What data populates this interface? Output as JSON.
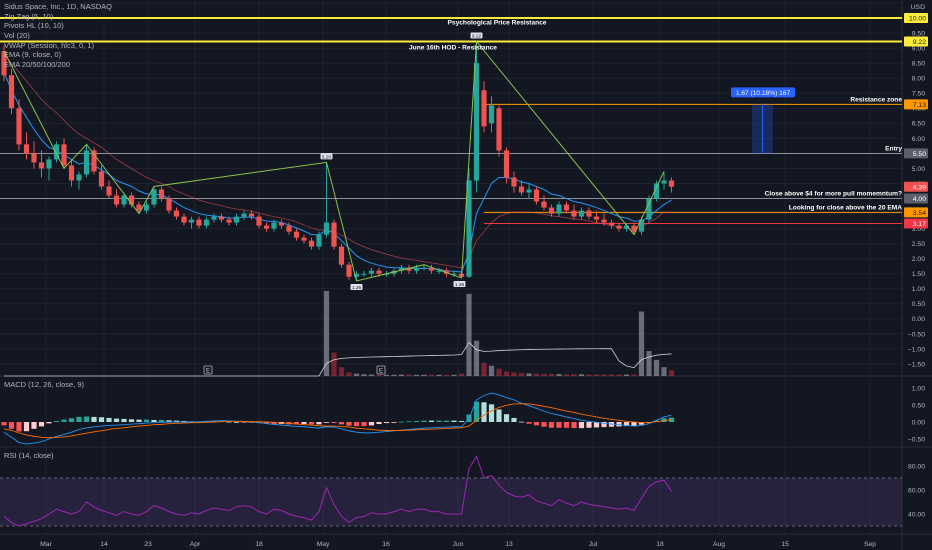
{
  "legend": {
    "symbol": "Sidus Space, Inc., 1D, NASDAQ",
    "indicators": [
      "Zig Zag (5, 10)",
      "Pivots HL (10, 10)",
      "Vol (20)",
      "VWAP (Session, hlc3, 0, 1)",
      "EMA (9, close, 0)",
      "EMA 20/50/100/200"
    ]
  },
  "currency": "USD",
  "colors": {
    "up": "#26a69a",
    "down": "#ef5350",
    "background": "#131722",
    "yellow_line": "#ffeb3b",
    "orange_line": "#ff9800",
    "red_line": "#f23645",
    "blue_label": "#2962ff",
    "ema9": "#2196f3",
    "ema20": "#f7525f",
    "zigzag": "#8bc34a",
    "rsi": "#9c27b0",
    "macd": "#2196f3",
    "signal": "#ff6d00"
  },
  "price_axis": {
    "min": -1.9,
    "max": 10.6,
    "ticks": [
      "10.50",
      "10.00",
      "9.50",
      "9.00",
      "8.50",
      "8.00",
      "7.50",
      "7.00",
      "6.50",
      "6.00",
      "5.50",
      "5.00",
      "4.50",
      "4.00",
      "3.50",
      "3.00",
      "2.50",
      "2.00",
      "1.50",
      "1.00",
      "0.50",
      "0.00",
      "−0.50",
      "−1.00",
      "−1.50"
    ]
  },
  "macd_axis": {
    "ticks": [
      "1.00",
      "0.50",
      "0.00",
      "−0.50"
    ]
  },
  "rsi_axis": {
    "ticks": [
      "80.00",
      "60.00",
      "40.00"
    ]
  },
  "x_axis_labels": [
    "Mar",
    "14",
    "23",
    "Apr",
    "18",
    "May",
    "16",
    "Jun",
    "13",
    "Jul",
    "18",
    "Aug",
    "15",
    "Sep"
  ],
  "price_labels": {
    "p1000": "10.00",
    "p922": "9.22",
    "p713": "7.13",
    "p550": "5.50",
    "p439": "4.39",
    "p400": "4.00",
    "p354": "3.54",
    "p317": "3.17"
  },
  "annotations": {
    "psych": "Psychological Price Resistance",
    "june16": "June 16th HOD - Resistance",
    "resistance_zone": "Resistance zone",
    "entry": "Entry",
    "close_above_4": "Close above $4 for more pull momemntum?",
    "close_above_20ema": "Looking for close above the 20 EMA",
    "measure": "1.67 (10.18%) 167",
    "earnings": "E"
  },
  "pivot_labels": {
    "high1": "5.20",
    "low1": "1.26",
    "high2": "9.22",
    "low2": "1.36"
  },
  "macd_legend": "MACD (12, 26, close, 9)",
  "rsi_legend": "RSI (14, close)",
  "chart_data": {
    "type": "candlestick",
    "symbol": "Sidus Space, Inc.",
    "interval": "1D",
    "exchange": "NASDAQ",
    "ohlc": [
      [
        8.9,
        9.1,
        7.9,
        8.1
      ],
      [
        8.1,
        8.3,
        6.8,
        7.0
      ],
      [
        7.0,
        7.3,
        5.6,
        5.8
      ],
      [
        5.8,
        6.2,
        5.3,
        5.5
      ],
      [
        5.5,
        5.9,
        5.0,
        5.2
      ],
      [
        5.2,
        5.6,
        4.7,
        5.0
      ],
      [
        5.0,
        5.4,
        4.6,
        5.3
      ],
      [
        5.3,
        5.9,
        5.2,
        5.8
      ],
      [
        5.8,
        6.0,
        5.0,
        5.1
      ],
      [
        5.1,
        5.3,
        4.4,
        4.6
      ],
      [
        4.6,
        4.9,
        4.3,
        4.8
      ],
      [
        4.8,
        5.8,
        4.7,
        5.6
      ],
      [
        5.6,
        5.7,
        4.8,
        4.9
      ],
      [
        4.9,
        5.1,
        4.3,
        4.4
      ],
      [
        4.4,
        4.6,
        4.0,
        4.1
      ],
      [
        4.1,
        4.3,
        3.7,
        3.8
      ],
      [
        3.8,
        4.2,
        3.7,
        4.1
      ],
      [
        4.1,
        4.2,
        3.7,
        3.8
      ],
      [
        3.8,
        3.9,
        3.5,
        3.6
      ],
      [
        3.6,
        3.9,
        3.5,
        3.8
      ],
      [
        3.8,
        4.4,
        3.7,
        4.3
      ],
      [
        4.3,
        4.4,
        3.9,
        4.0
      ],
      [
        4.0,
        4.1,
        3.5,
        3.6
      ],
      [
        3.6,
        3.7,
        3.3,
        3.4
      ],
      [
        3.4,
        3.5,
        3.1,
        3.2
      ],
      [
        3.2,
        3.4,
        3.0,
        3.3
      ],
      [
        3.3,
        3.4,
        3.0,
        3.1
      ],
      [
        3.1,
        3.4,
        3.0,
        3.3
      ],
      [
        3.3,
        3.5,
        3.2,
        3.4
      ],
      [
        3.4,
        3.5,
        3.2,
        3.3
      ],
      [
        3.3,
        3.4,
        3.1,
        3.2
      ],
      [
        3.2,
        3.5,
        3.1,
        3.4
      ],
      [
        3.4,
        3.6,
        3.3,
        3.5
      ],
      [
        3.5,
        3.6,
        3.3,
        3.4
      ],
      [
        3.4,
        3.5,
        3.0,
        3.1
      ],
      [
        3.1,
        3.2,
        2.9,
        3.0
      ],
      [
        3.0,
        3.3,
        2.9,
        3.2
      ],
      [
        3.2,
        3.3,
        3.0,
        3.1
      ],
      [
        3.1,
        3.2,
        2.8,
        2.9
      ],
      [
        2.9,
        3.0,
        2.6,
        2.7
      ],
      [
        2.7,
        2.8,
        2.5,
        2.6
      ],
      [
        2.6,
        2.7,
        2.3,
        2.4
      ],
      [
        2.4,
        2.9,
        2.3,
        2.8
      ],
      [
        2.8,
        5.2,
        2.7,
        3.2
      ],
      [
        3.2,
        3.3,
        2.3,
        2.4
      ],
      [
        2.4,
        2.5,
        1.7,
        1.8
      ],
      [
        1.8,
        1.9,
        1.3,
        1.4
      ],
      [
        1.4,
        1.6,
        1.3,
        1.5
      ],
      [
        1.5,
        1.6,
        1.4,
        1.5
      ],
      [
        1.5,
        1.7,
        1.4,
        1.6
      ],
      [
        1.6,
        1.7,
        1.4,
        1.5
      ],
      [
        1.5,
        1.6,
        1.4,
        1.5
      ],
      [
        1.5,
        1.7,
        1.4,
        1.6
      ],
      [
        1.6,
        1.8,
        1.5,
        1.7
      ],
      [
        1.7,
        1.8,
        1.5,
        1.6
      ],
      [
        1.6,
        1.8,
        1.5,
        1.7
      ],
      [
        1.7,
        1.8,
        1.6,
        1.7
      ],
      [
        1.7,
        1.8,
        1.5,
        1.6
      ],
      [
        1.6,
        1.7,
        1.5,
        1.6
      ],
      [
        1.6,
        1.7,
        1.4,
        1.5
      ],
      [
        1.5,
        1.6,
        1.4,
        1.5
      ],
      [
        1.5,
        1.6,
        1.36,
        1.4
      ],
      [
        1.4,
        5.0,
        1.36,
        4.6
      ],
      [
        4.6,
        9.22,
        4.2,
        8.5
      ],
      [
        7.6,
        7.9,
        6.2,
        6.4
      ],
      [
        6.5,
        7.4,
        6.2,
        7.1
      ],
      [
        7.0,
        7.1,
        5.4,
        5.6
      ],
      [
        5.6,
        5.7,
        4.5,
        4.7
      ],
      [
        4.7,
        4.9,
        4.2,
        4.4
      ],
      [
        4.4,
        4.6,
        4.1,
        4.2
      ],
      [
        4.2,
        4.5,
        4.0,
        4.3
      ],
      [
        4.3,
        4.4,
        3.8,
        3.9
      ],
      [
        3.9,
        4.1,
        3.6,
        3.7
      ],
      [
        3.7,
        3.8,
        3.4,
        3.5
      ],
      [
        3.5,
        3.9,
        3.4,
        3.8
      ],
      [
        3.8,
        3.9,
        3.5,
        3.6
      ],
      [
        3.6,
        3.8,
        3.3,
        3.4
      ],
      [
        3.4,
        3.7,
        3.3,
        3.6
      ],
      [
        3.6,
        3.7,
        3.3,
        3.4
      ],
      [
        3.4,
        3.6,
        3.2,
        3.3
      ],
      [
        3.3,
        3.5,
        3.1,
        3.2
      ],
      [
        3.2,
        3.3,
        3.0,
        3.1
      ],
      [
        3.1,
        3.2,
        2.9,
        3.0
      ],
      [
        3.0,
        3.2,
        2.9,
        3.1
      ],
      [
        3.1,
        3.2,
        2.8,
        2.9
      ],
      [
        2.9,
        3.4,
        2.8,
        3.3
      ],
      [
        3.3,
        4.1,
        3.2,
        4.0
      ],
      [
        4.0,
        4.6,
        3.9,
        4.5
      ],
      [
        4.5,
        4.9,
        4.3,
        4.6
      ],
      [
        4.6,
        4.7,
        4.2,
        4.39
      ]
    ],
    "volume": [
      0,
      0,
      0,
      0,
      0,
      0,
      0,
      0,
      0,
      0,
      0,
      0,
      0,
      0,
      0,
      0,
      0,
      0,
      0,
      0,
      0,
      0,
      0,
      0,
      0,
      0,
      0,
      0,
      0,
      0,
      0,
      0,
      0,
      0,
      0,
      0,
      0,
      0,
      0,
      0,
      0,
      0,
      0,
      290,
      80,
      30,
      12,
      8,
      6,
      5,
      4,
      4,
      4,
      5,
      5,
      4,
      4,
      4,
      4,
      4,
      4,
      8,
      280,
      120,
      45,
      35,
      25,
      15,
      12,
      10,
      9,
      8,
      7,
      7,
      7,
      6,
      6,
      6,
      5,
      5,
      5,
      5,
      5,
      5,
      5,
      220,
      85,
      55,
      30,
      20
    ],
    "vwap_ema": [
      8.2,
      7.6,
      7.1,
      6.7,
      6.3,
      5.95,
      5.7,
      5.6,
      5.45,
      5.3,
      5.15,
      5.2,
      5.1,
      4.95,
      4.8,
      4.6,
      4.5,
      4.4,
      4.25,
      4.15,
      4.15,
      4.12,
      4.0,
      3.85,
      3.7,
      3.6,
      3.5,
      3.45,
      3.42,
      3.4,
      3.35,
      3.35,
      3.38,
      3.38,
      3.32,
      3.25,
      3.24,
      3.2,
      3.12,
      3.02,
      2.92,
      2.8,
      2.8,
      2.95,
      2.85,
      2.6,
      2.35,
      2.1,
      1.95,
      1.85,
      1.78,
      1.72,
      1.7,
      1.7,
      1.68,
      1.68,
      1.68,
      1.66,
      1.64,
      1.6,
      1.58,
      1.56,
      2.2,
      3.5,
      4.0,
      4.5,
      4.7,
      4.7,
      4.65,
      4.55,
      4.5,
      4.4,
      4.3,
      4.15,
      4.1,
      4.0,
      3.9,
      3.85,
      3.78,
      3.7,
      3.6,
      3.5,
      3.4,
      3.35,
      3.25,
      3.25,
      3.4,
      3.6,
      3.8,
      3.95
    ],
    "ema20": [
      8.8,
      8.5,
      8.2,
      7.9,
      7.6,
      7.3,
      7.05,
      6.85,
      6.6,
      6.35,
      6.15,
      6.0,
      5.85,
      5.7,
      5.5,
      5.3,
      5.15,
      5.0,
      4.85,
      4.7,
      4.6,
      4.5,
      4.4,
      4.25,
      4.15,
      4.05,
      3.95,
      3.88,
      3.82,
      3.76,
      3.7,
      3.65,
      3.62,
      3.58,
      3.52,
      3.45,
      3.4,
      3.35,
      3.3,
      3.22,
      3.12,
      3.02,
      2.95,
      2.95,
      2.9,
      2.78,
      2.65,
      2.5,
      2.4,
      2.3,
      2.22,
      2.15,
      2.08,
      2.02,
      1.98,
      1.94,
      1.9,
      1.86,
      1.82,
      1.78,
      1.74,
      1.7,
      2.0,
      2.6,
      2.9,
      3.2,
      3.4,
      3.5,
      3.55,
      3.55,
      3.55,
      3.52,
      3.48,
      3.42,
      3.4,
      3.36,
      3.32,
      3.3,
      3.25,
      3.2,
      3.15,
      3.1,
      3.05,
      3.0,
      2.98,
      3.05,
      3.2,
      3.35,
      3.55,
      3.54
    ],
    "zigzag": [
      {
        "i": 0,
        "p": 8.9
      },
      {
        "i": 8,
        "p": 5.0
      },
      {
        "i": 11,
        "p": 5.8
      },
      {
        "i": 18,
        "p": 3.5
      },
      {
        "i": 20,
        "p": 4.4
      },
      {
        "i": 43,
        "p": 5.2
      },
      {
        "i": 47,
        "p": 1.26
      },
      {
        "i": 56,
        "p": 1.8
      },
      {
        "i": 61,
        "p": 1.36
      },
      {
        "i": 63,
        "p": 9.22
      },
      {
        "i": 84,
        "p": 2.8
      },
      {
        "i": 88,
        "p": 4.9
      }
    ],
    "macd": [
      -0.3,
      -0.45,
      -0.6,
      -0.65,
      -0.62,
      -0.58,
      -0.5,
      -0.42,
      -0.37,
      -0.3,
      -0.22,
      -0.17,
      -0.14,
      -0.12,
      -0.1,
      -0.09,
      -0.08,
      -0.06,
      -0.05,
      -0.03,
      -0.02,
      -0.01,
      0,
      0,
      0,
      0,
      0,
      0.02,
      0.03,
      0.04,
      0.03,
      0.02,
      0.01,
      0,
      -0.02,
      -0.05,
      -0.07,
      -0.09,
      -0.11,
      -0.13,
      -0.14,
      -0.16,
      -0.18,
      -0.14,
      -0.15,
      -0.2,
      -0.26,
      -0.3,
      -0.32,
      -0.32,
      -0.3,
      -0.28,
      -0.26,
      -0.24,
      -0.22,
      -0.2,
      -0.18,
      -0.17,
      -0.16,
      -0.15,
      -0.14,
      -0.14,
      0.1,
      0.65,
      0.78,
      0.85,
      0.8,
      0.72,
      0.65,
      0.55,
      0.48,
      0.4,
      0.32,
      0.25,
      0.2,
      0.15,
      0.1,
      0.05,
      0.02,
      -0.01,
      -0.04,
      -0.06,
      -0.08,
      -0.1,
      -0.12,
      -0.1,
      -0.05,
      0.05,
      0.15,
      0.2
    ],
    "macd_signal": [
      -0.2,
      -0.25,
      -0.32,
      -0.38,
      -0.42,
      -0.45,
      -0.46,
      -0.45,
      -0.44,
      -0.41,
      -0.37,
      -0.33,
      -0.29,
      -0.26,
      -0.22,
      -0.19,
      -0.17,
      -0.14,
      -0.12,
      -0.1,
      -0.08,
      -0.07,
      -0.05,
      -0.04,
      -0.03,
      -0.02,
      -0.02,
      -0.01,
      0,
      0.01,
      0.02,
      0.02,
      0.02,
      0.01,
      0.01,
      0,
      -0.01,
      -0.03,
      -0.04,
      -0.06,
      -0.08,
      -0.09,
      -0.11,
      -0.12,
      -0.12,
      -0.13,
      -0.15,
      -0.18,
      -0.2,
      -0.22,
      -0.24,
      -0.25,
      -0.25,
      -0.25,
      -0.24,
      -0.23,
      -0.22,
      -0.21,
      -0.2,
      -0.19,
      -0.18,
      -0.17,
      -0.12,
      0.05,
      0.2,
      0.33,
      0.43,
      0.49,
      0.53,
      0.54,
      0.53,
      0.5,
      0.46,
      0.42,
      0.37,
      0.32,
      0.28,
      0.23,
      0.19,
      0.15,
      0.11,
      0.08,
      0.05,
      0.02,
      0,
      -0.02,
      -0.02,
      0.01,
      0.04,
      0.07
    ],
    "rsi": [
      38,
      33,
      30,
      32,
      34,
      36,
      40,
      44,
      42,
      40,
      42,
      50,
      46,
      43,
      41,
      39,
      42,
      40,
      39,
      42,
      47,
      45,
      42,
      40,
      39,
      41,
      40,
      43,
      45,
      44,
      43,
      46,
      47,
      46,
      42,
      40,
      44,
      43,
      40,
      38,
      37,
      35,
      42,
      62,
      48,
      38,
      33,
      37,
      38,
      41,
      40,
      40,
      42,
      44,
      42,
      44,
      44,
      42,
      42,
      40,
      40,
      40,
      78,
      88,
      70,
      72,
      64,
      58,
      55,
      54,
      56,
      51,
      49,
      47,
      52,
      49,
      47,
      50,
      48,
      47,
      46,
      45,
      44,
      45,
      43,
      53,
      63,
      67,
      68,
      59
    ],
    "x_tick_labels": [
      "Mar",
      "14",
      "23",
      "Apr",
      "18",
      "May",
      "16",
      "Jun",
      "13",
      "Jul",
      "18",
      "Aug",
      "15",
      "Sep"
    ],
    "y_range": [
      -1.9,
      10.6
    ],
    "horizontal_levels": [
      10.0,
      9.22,
      7.13,
      5.5,
      4.0,
      3.54,
      3.17
    ],
    "last_close": 4.39,
    "grid": true
  }
}
